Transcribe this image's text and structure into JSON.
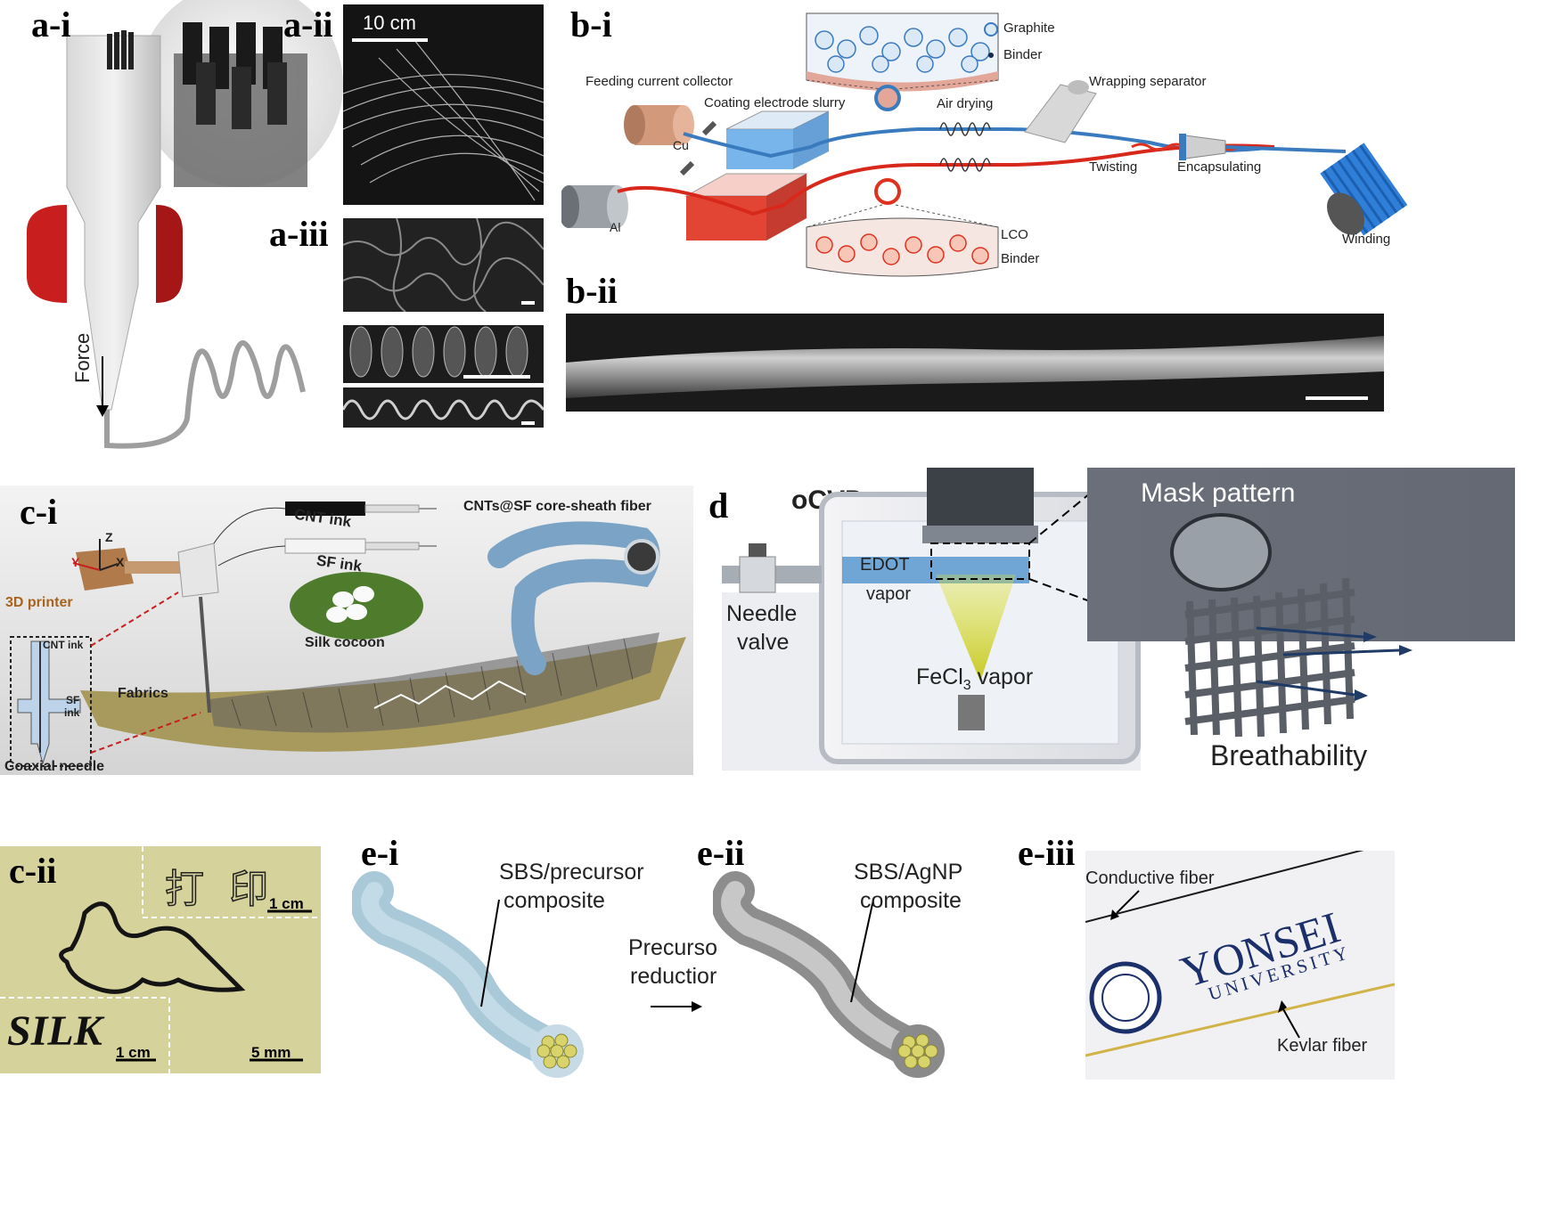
{
  "panels": {
    "a_i": {
      "label": "a-i",
      "force_label": "Force"
    },
    "a_ii": {
      "label": "a-ii",
      "scale": "10 cm"
    },
    "a_iii": {
      "label": "a-iii"
    },
    "b_i": {
      "label": "b-i",
      "graphite_legend": "Graphite",
      "binder_legend_top": "Binder",
      "feeding_label": "Feeding current collector",
      "coating_label": "Coating electrode slurry",
      "air_drying_label": "Air drying",
      "wrapping_label": "Wrapping separator",
      "twisting_label": "Twisting",
      "encapsulating_label": "Encapsulating",
      "winding_label": "Winding",
      "cu_label": "Cu",
      "al_label": "Al",
      "lco_legend": "LCO",
      "binder_legend_bottom": "Binder",
      "colors": {
        "graphite": "#3a7bbf",
        "lco": "#e0311e",
        "copper": "#d29a7b",
        "aluminum": "#9aa0a6"
      }
    },
    "b_ii": {
      "label": "b-ii"
    },
    "c_i": {
      "label": "c-i",
      "cnt_ink": "CNT ink",
      "sf_ink": "SF ink",
      "core_sheath": "CNTs@SF core-sheath fiber",
      "printer": "3D printer",
      "silk_cocoon": "Silk cocoon",
      "fabrics": "Fabrics",
      "coaxial_needle": "Coaxial needle",
      "needle_cnt": "CNT ink",
      "needle_sf_1": "SF",
      "needle_sf_2": "ink",
      "axis_z": "Z",
      "axis_y": "Y",
      "axis_x": "X"
    },
    "d": {
      "label": "d",
      "title": "oCVD",
      "mask_pattern": "Mask pattern",
      "edot": "EDOT",
      "vapor": "vapor",
      "needle": "Needle",
      "valve": "valve",
      "fecl3_main": "FeCl",
      "fecl3_sub": "3",
      "fecl3_vapor": " vapor",
      "breathability": "Breathability"
    },
    "c_ii": {
      "label": "c-ii",
      "chinese_text": "打 印",
      "scale_1": "1 cm",
      "silk_text": "SILK",
      "scale_2": "1 cm",
      "scale_3": "5 mm"
    },
    "e_i": {
      "label": "e-i",
      "composite_1": "SBS/precursor",
      "composite_2": "composite"
    },
    "e_ii": {
      "label": "e-ii",
      "composite_1": "SBS/AgNP",
      "composite_2": "composite",
      "precursor_1": "Precurso",
      "precursor_2": "reductior"
    },
    "e_iii": {
      "label": "e-iii",
      "conductive": "Conductive fiber",
      "kevlar": "Kevlar fiber",
      "yonsei_1": "YONSEI",
      "yonsei_2": "UNIVERSITY"
    }
  }
}
